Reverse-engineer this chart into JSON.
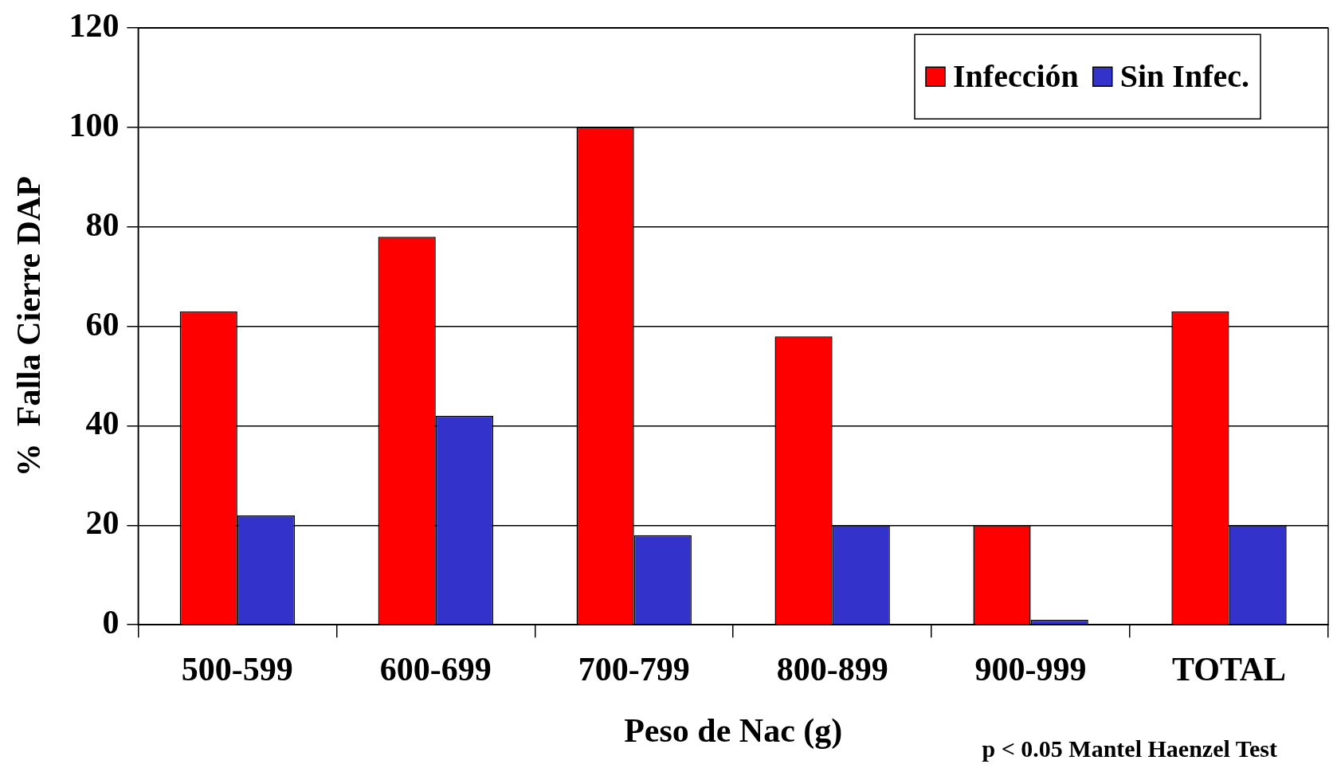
{
  "chart_data": {
    "type": "bar",
    "xlabel": "Peso de Nac (g)",
    "ylabel": "%  Falla Cierre DAP",
    "categories": [
      "500-599",
      "600-699",
      "700-799",
      "800-899",
      "900-999",
      "TOTAL"
    ],
    "series": [
      {
        "name": "Infección",
        "color": "#ff0000",
        "values": [
          63,
          78,
          100,
          58,
          20,
          63
        ]
      },
      {
        "name": "Sin Infec.",
        "color": "#3333cc",
        "values": [
          22,
          42,
          18,
          20,
          1,
          20
        ]
      }
    ],
    "ylim": [
      0,
      120
    ],
    "yticks": [
      0,
      20,
      40,
      60,
      80,
      100,
      120
    ],
    "grid": "y",
    "legend": "top right",
    "annotations": [
      "p < 0.05 Mantel Haenzel Test"
    ]
  }
}
